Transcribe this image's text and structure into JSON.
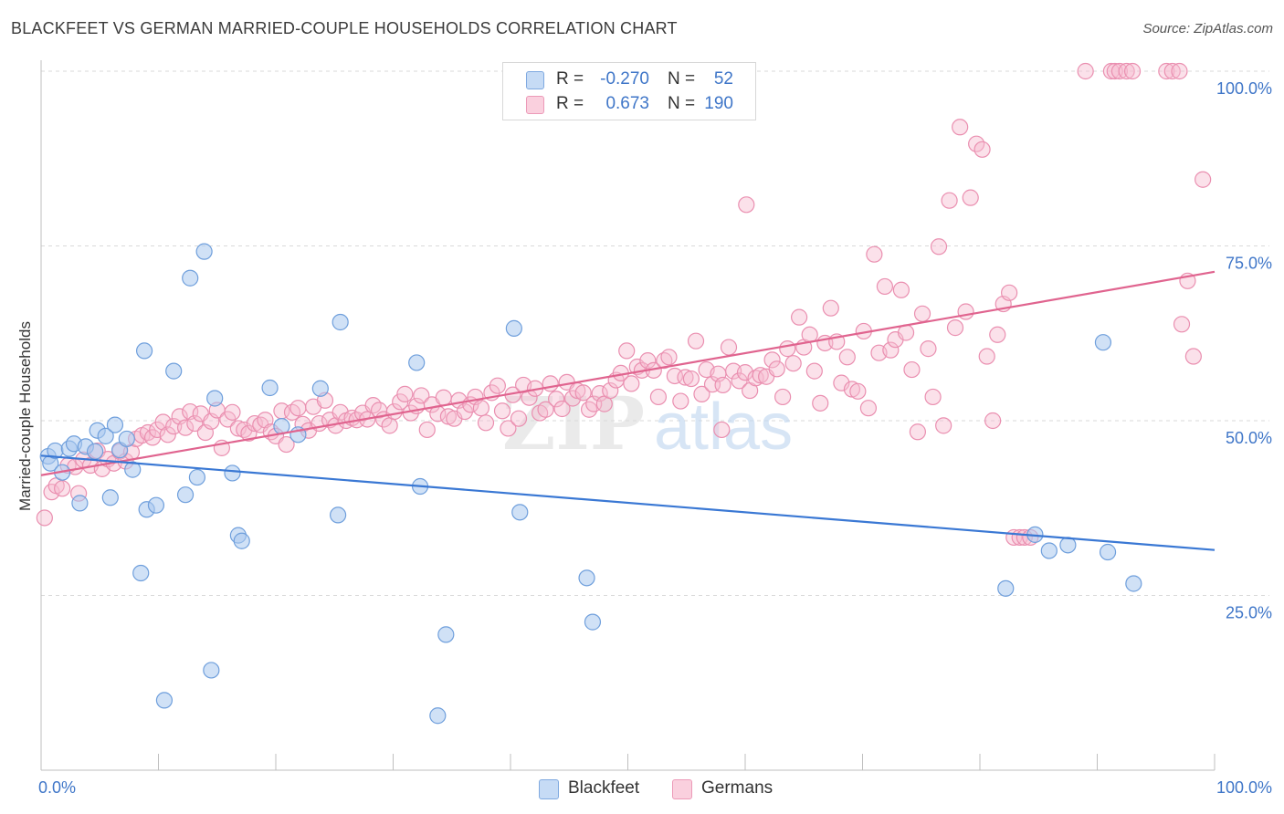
{
  "title": "BLACKFEET VS GERMAN MARRIED-COUPLE HOUSEHOLDS CORRELATION CHART",
  "source": "Source: ZipAtlas.com",
  "watermark": {
    "zip": "ZIP",
    "atlas": "atlas"
  },
  "legend": {
    "blackfeet": {
      "r_label": "R =",
      "r_value": "-0.270",
      "n_label": "N =",
      "n_value": "52"
    },
    "germans": {
      "r_label": "R =",
      "r_value": "0.673",
      "n_label": "N =",
      "n_value": "190"
    }
  },
  "bottom_legend": {
    "blackfeet": "Blackfeet",
    "germans": "Germans"
  },
  "colors": {
    "blackfeet_fill": "#aac8ef",
    "blackfeet_stroke": "#6f9fdc",
    "blackfeet_line": "#3a78d4",
    "germans_fill": "#f6bcd0",
    "germans_stroke": "#ea8fb0",
    "germans_line": "#e0648f",
    "axis_text": "#3f76c8",
    "grid": "#d9d9d9"
  },
  "chart_data": {
    "type": "scatter",
    "title": "BLACKFEET VS GERMAN MARRIED-COUPLE HOUSEHOLDS CORRELATION CHART",
    "xlabel": "",
    "ylabel": "Married-couple Households",
    "xlim": [
      0,
      100
    ],
    "ylim": [
      0,
      103
    ],
    "x_tick_labels": [
      "0.0%",
      "100.0%"
    ],
    "y_tick_labels": [
      "25.0%",
      "50.0%",
      "75.0%",
      "100.0%"
    ],
    "y_ticks": [
      25,
      50,
      75,
      100
    ],
    "series": [
      {
        "name": "Blackfeet",
        "trend": {
          "x0": 0,
          "y0": 45.0,
          "x1": 100,
          "y1": 31.5
        },
        "points": [
          [
            0.6,
            44.9
          ],
          [
            0.8,
            43.9
          ],
          [
            1.2,
            45.7
          ],
          [
            1.8,
            42.6
          ],
          [
            2.4,
            46.0
          ],
          [
            2.8,
            46.7
          ],
          [
            3.3,
            38.2
          ],
          [
            3.8,
            46.3
          ],
          [
            4.6,
            45.6
          ],
          [
            4.8,
            48.6
          ],
          [
            5.5,
            47.8
          ],
          [
            5.9,
            39.0
          ],
          [
            6.3,
            49.4
          ],
          [
            6.7,
            45.8
          ],
          [
            7.3,
            47.4
          ],
          [
            7.8,
            43.0
          ],
          [
            8.5,
            28.2
          ],
          [
            8.8,
            60.0
          ],
          [
            9.0,
            37.3
          ],
          [
            9.8,
            37.9
          ],
          [
            10.5,
            10.0
          ],
          [
            11.3,
            57.1
          ],
          [
            12.3,
            39.4
          ],
          [
            12.7,
            70.4
          ],
          [
            13.3,
            41.9
          ],
          [
            13.9,
            74.2
          ],
          [
            14.5,
            14.3
          ],
          [
            14.8,
            53.2
          ],
          [
            16.3,
            42.5
          ],
          [
            16.8,
            33.6
          ],
          [
            17.1,
            32.8
          ],
          [
            19.5,
            54.7
          ],
          [
            20.5,
            49.2
          ],
          [
            21.9,
            48.0
          ],
          [
            23.8,
            54.6
          ],
          [
            25.3,
            36.5
          ],
          [
            25.5,
            64.1
          ],
          [
            32.0,
            58.3
          ],
          [
            32.3,
            40.6
          ],
          [
            33.8,
            7.8
          ],
          [
            34.5,
            19.4
          ],
          [
            40.3,
            63.2
          ],
          [
            40.8,
            36.9
          ],
          [
            46.5,
            27.5
          ],
          [
            47.0,
            21.2
          ],
          [
            82.2,
            26.0
          ],
          [
            84.7,
            33.7
          ],
          [
            85.9,
            31.4
          ],
          [
            87.5,
            32.2
          ],
          [
            90.5,
            61.2
          ],
          [
            90.9,
            31.2
          ],
          [
            93.1,
            26.7
          ]
        ]
      },
      {
        "name": "Germans",
        "trend": {
          "x0": 0,
          "y0": 42.2,
          "x1": 100,
          "y1": 71.3
        },
        "points": [
          [
            0.3,
            36.1
          ],
          [
            0.9,
            39.8
          ],
          [
            1.3,
            40.7
          ],
          [
            1.8,
            40.3
          ],
          [
            2.3,
            43.6
          ],
          [
            2.9,
            43.4
          ],
          [
            3.2,
            39.6
          ],
          [
            3.6,
            44.4
          ],
          [
            4.2,
            43.6
          ],
          [
            4.8,
            45.7
          ],
          [
            5.2,
            43.1
          ],
          [
            5.7,
            44.5
          ],
          [
            6.2,
            43.9
          ],
          [
            6.7,
            45.6
          ],
          [
            7.2,
            44.2
          ],
          [
            7.7,
            45.5
          ],
          [
            8.1,
            47.4
          ],
          [
            8.6,
            47.9
          ],
          [
            9.1,
            48.3
          ],
          [
            9.5,
            47.6
          ],
          [
            9.9,
            48.7
          ],
          [
            10.4,
            49.8
          ],
          [
            10.8,
            48.0
          ],
          [
            11.3,
            49.2
          ],
          [
            11.8,
            50.6
          ],
          [
            12.3,
            49.0
          ],
          [
            12.7,
            51.3
          ],
          [
            13.1,
            49.6
          ],
          [
            13.6,
            51.0
          ],
          [
            14.0,
            48.3
          ],
          [
            14.5,
            49.9
          ],
          [
            15.0,
            51.5
          ],
          [
            15.4,
            46.1
          ],
          [
            15.9,
            50.2
          ],
          [
            16.3,
            51.2
          ],
          [
            16.8,
            48.9
          ],
          [
            17.3,
            48.7
          ],
          [
            17.7,
            48.2
          ],
          [
            18.2,
            49.6
          ],
          [
            18.7,
            49.4
          ],
          [
            19.1,
            50.1
          ],
          [
            19.6,
            48.4
          ],
          [
            20.0,
            47.8
          ],
          [
            20.5,
            51.4
          ],
          [
            20.9,
            46.6
          ],
          [
            21.4,
            51.2
          ],
          [
            21.9,
            51.8
          ],
          [
            22.3,
            49.5
          ],
          [
            22.8,
            48.6
          ],
          [
            23.2,
            52.0
          ],
          [
            23.7,
            49.6
          ],
          [
            24.2,
            52.9
          ],
          [
            24.6,
            50.1
          ],
          [
            25.1,
            49.3
          ],
          [
            25.5,
            51.2
          ],
          [
            26.0,
            50.0
          ],
          [
            26.5,
            50.4
          ],
          [
            26.9,
            50.1
          ],
          [
            27.4,
            51.1
          ],
          [
            27.8,
            50.2
          ],
          [
            28.3,
            52.2
          ],
          [
            28.8,
            51.5
          ],
          [
            29.2,
            50.2
          ],
          [
            29.7,
            49.3
          ],
          [
            30.1,
            51.3
          ],
          [
            30.6,
            52.7
          ],
          [
            31.0,
            53.8
          ],
          [
            31.5,
            51.1
          ],
          [
            32.0,
            52.1
          ],
          [
            32.4,
            53.6
          ],
          [
            32.9,
            48.7
          ],
          [
            33.3,
            52.3
          ],
          [
            33.8,
            51.0
          ],
          [
            34.3,
            53.3
          ],
          [
            34.7,
            50.6
          ],
          [
            35.2,
            50.3
          ],
          [
            35.6,
            52.9
          ],
          [
            36.1,
            51.3
          ],
          [
            36.6,
            52.3
          ],
          [
            37.0,
            53.4
          ],
          [
            37.5,
            51.8
          ],
          [
            37.9,
            49.7
          ],
          [
            38.4,
            54.0
          ],
          [
            38.9,
            55.0
          ],
          [
            39.3,
            51.4
          ],
          [
            39.8,
            48.9
          ],
          [
            40.2,
            53.7
          ],
          [
            40.7,
            50.3
          ],
          [
            41.1,
            55.1
          ],
          [
            41.6,
            53.3
          ],
          [
            42.1,
            54.6
          ],
          [
            42.5,
            51.1
          ],
          [
            43.0,
            51.6
          ],
          [
            43.4,
            55.3
          ],
          [
            43.9,
            53.1
          ],
          [
            44.4,
            51.7
          ],
          [
            44.8,
            55.5
          ],
          [
            45.3,
            53.2
          ],
          [
            45.7,
            54.3
          ],
          [
            46.2,
            54.0
          ],
          [
            46.7,
            51.6
          ],
          [
            47.1,
            52.4
          ],
          [
            47.6,
            53.9
          ],
          [
            48.0,
            52.4
          ],
          [
            48.5,
            54.3
          ],
          [
            49.0,
            55.8
          ],
          [
            49.4,
            56.8
          ],
          [
            49.9,
            60.0
          ],
          [
            50.3,
            55.3
          ],
          [
            50.8,
            57.7
          ],
          [
            51.2,
            57.2
          ],
          [
            51.7,
            58.6
          ],
          [
            52.2,
            57.2
          ],
          [
            52.6,
            53.4
          ],
          [
            53.1,
            58.6
          ],
          [
            53.5,
            59.1
          ],
          [
            54.0,
            56.4
          ],
          [
            54.5,
            52.8
          ],
          [
            54.9,
            56.2
          ],
          [
            55.4,
            56.0
          ],
          [
            55.8,
            61.4
          ],
          [
            56.3,
            53.8
          ],
          [
            56.7,
            57.3
          ],
          [
            57.2,
            55.2
          ],
          [
            57.7,
            56.7
          ],
          [
            58.1,
            55.1
          ],
          [
            58.6,
            60.5
          ],
          [
            59.0,
            57.1
          ],
          [
            59.5,
            55.7
          ],
          [
            60.0,
            56.9
          ],
          [
            60.4,
            54.3
          ],
          [
            60.9,
            56.1
          ],
          [
            61.3,
            56.5
          ],
          [
            61.8,
            56.3
          ],
          [
            62.3,
            58.7
          ],
          [
            62.7,
            57.4
          ],
          [
            63.2,
            53.4
          ],
          [
            63.6,
            60.3
          ],
          [
            64.1,
            58.2
          ],
          [
            64.6,
            64.8
          ],
          [
            65.0,
            60.5
          ],
          [
            65.5,
            62.3
          ],
          [
            65.9,
            57.1
          ],
          [
            66.4,
            52.5
          ],
          [
            66.8,
            61.1
          ],
          [
            67.3,
            66.1
          ],
          [
            67.8,
            61.3
          ],
          [
            68.2,
            55.4
          ],
          [
            68.7,
            59.1
          ],
          [
            69.1,
            54.5
          ],
          [
            69.6,
            54.2
          ],
          [
            70.1,
            62.8
          ],
          [
            70.5,
            51.8
          ],
          [
            71.0,
            73.8
          ],
          [
            71.4,
            59.7
          ],
          [
            71.9,
            69.2
          ],
          [
            72.4,
            60.1
          ],
          [
            72.8,
            61.6
          ],
          [
            73.3,
            68.7
          ],
          [
            73.7,
            62.6
          ],
          [
            74.2,
            57.3
          ],
          [
            74.7,
            48.4
          ],
          [
            75.1,
            65.3
          ],
          [
            75.6,
            60.3
          ],
          [
            76.0,
            53.4
          ],
          [
            76.5,
            74.9
          ],
          [
            76.9,
            49.3
          ],
          [
            77.4,
            81.5
          ],
          [
            77.9,
            63.3
          ],
          [
            78.3,
            92.0
          ],
          [
            78.8,
            65.6
          ],
          [
            79.2,
            81.9
          ],
          [
            79.7,
            89.6
          ],
          [
            80.2,
            88.8
          ],
          [
            80.6,
            59.2
          ],
          [
            81.1,
            50.0
          ],
          [
            81.5,
            62.3
          ],
          [
            82.0,
            66.7
          ],
          [
            82.5,
            68.3
          ],
          [
            82.9,
            33.3
          ],
          [
            83.4,
            33.3
          ],
          [
            83.8,
            33.3
          ],
          [
            84.3,
            33.3
          ],
          [
            89.0,
            100.0
          ],
          [
            91.2,
            100.0
          ],
          [
            91.5,
            100.0
          ],
          [
            91.9,
            100.0
          ],
          [
            92.5,
            100.0
          ],
          [
            93.0,
            100.0
          ],
          [
            95.9,
            100.0
          ],
          [
            96.4,
            100.0
          ],
          [
            97.0,
            100.0
          ],
          [
            99.0,
            84.5
          ],
          [
            97.7,
            70.0
          ],
          [
            97.2,
            63.8
          ],
          [
            98.2,
            59.2
          ],
          [
            60.1,
            80.9
          ],
          [
            58.0,
            48.7
          ]
        ]
      }
    ]
  }
}
